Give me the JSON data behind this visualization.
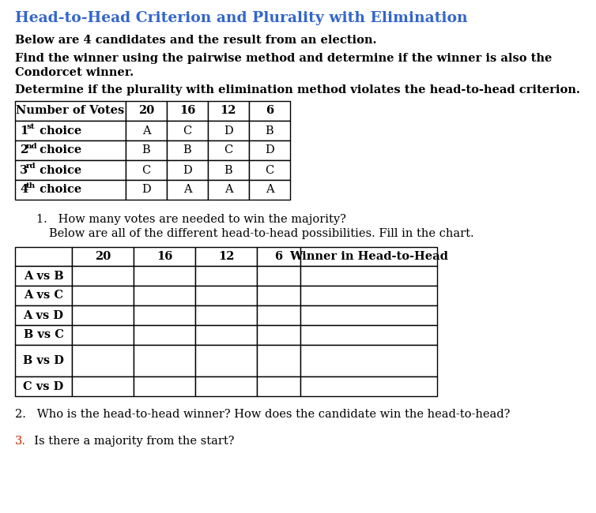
{
  "title": "Head-to-Head Criterion and Plurality with Elimination",
  "title_color": "#3366cc",
  "title_fontsize": 13.5,
  "paragraph1": "Below are 4 candidates and the result from an election.",
  "paragraph2a": "Find the winner using the pairwise method and determine if the winner is also the",
  "paragraph2b": "Condorcet winner.",
  "paragraph3": "Determine if the plurality with elimination method violates the head-to-head criterion.",
  "top_table_header": [
    "Number of Votes",
    "20",
    "16",
    "12",
    "6"
  ],
  "top_table_rows": [
    [
      "1st choice",
      "A",
      "C",
      "D",
      "B"
    ],
    [
      "2nd choice",
      "B",
      "B",
      "C",
      "D"
    ],
    [
      "3rd choice",
      "C",
      "D",
      "B",
      "C"
    ],
    [
      "4th choice",
      "D",
      "A",
      "A",
      "A"
    ]
  ],
  "top_ordinals": [
    "st",
    "nd",
    "rd",
    "th"
  ],
  "q1_line1": "1.   How many votes are needed to win the majority?",
  "q1_line2": "Below are all of the different head-to-head possibilities. Fill in the chart.",
  "bottom_table_header": [
    "",
    "20",
    "16",
    "12",
    "6",
    "Winner in Head-to-Head"
  ],
  "bottom_table_rows": [
    [
      "A vs B",
      "",
      "",
      "",
      "",
      ""
    ],
    [
      "A vs C",
      "",
      "",
      "",
      "",
      ""
    ],
    [
      "A vs D",
      "",
      "",
      "",
      "",
      ""
    ],
    [
      "B vs C",
      "",
      "",
      "",
      "",
      ""
    ],
    [
      "B vs D",
      "",
      "",
      "",
      "",
      ""
    ],
    [
      "C vs D",
      "",
      "",
      "",
      "",
      ""
    ]
  ],
  "q2": "2.   Who is the head-to-head winner? How does the candidate win the head-to-head?",
  "q3_num": "3.",
  "q3_text": "  Is there a majority from the start?",
  "q3_color": "#cc2200",
  "bg": "#ffffff"
}
